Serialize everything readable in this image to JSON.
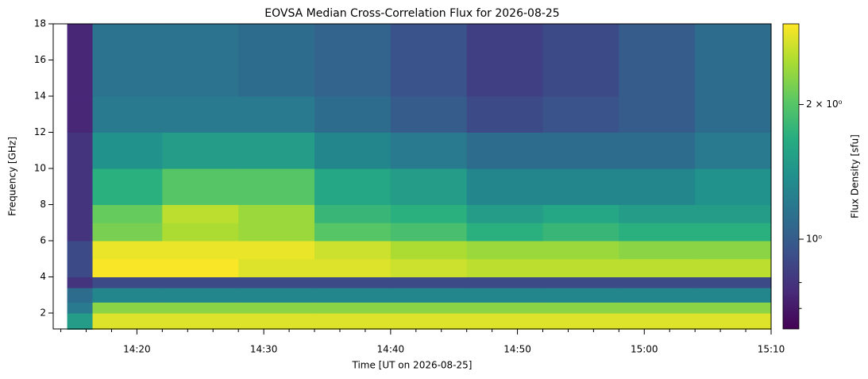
{
  "chart_data": {
    "type": "heatmap",
    "title": "EOVSA Median Cross-Correlation Flux for 2026-08-25",
    "xlabel": "Time [UT on 2026-08-25]",
    "ylabel": "Frequency [GHz]",
    "colorbar_label": "Flux Density [sfu]",
    "colormap": "viridis",
    "x_edges": [
      854.5,
      856.5,
      862,
      868,
      874,
      880,
      886,
      892,
      898,
      904,
      910
    ],
    "y_edges": [
      1.1,
      2,
      2.6,
      3.4,
      4,
      5,
      6,
      7,
      8,
      10,
      12,
      14,
      18
    ],
    "values": [
      [
        1.5,
        2.8,
        2.8,
        2.8,
        2.8,
        2.8,
        2.8,
        2.8,
        2.8,
        2.8
      ],
      [
        1.2,
        2.3,
        2.3,
        2.3,
        2.3,
        2.3,
        2.3,
        2.3,
        2.3,
        2.3
      ],
      [
        1.1,
        1.3,
        1.3,
        1.3,
        1.3,
        1.3,
        1.3,
        1.3,
        1.3,
        1.3
      ],
      [
        0.8,
        0.9,
        0.9,
        0.9,
        0.9,
        0.9,
        0.9,
        0.9,
        0.9,
        0.9
      ],
      [
        0.9,
        3.0,
        3.0,
        2.8,
        2.8,
        2.7,
        2.6,
        2.6,
        2.6,
        2.6
      ],
      [
        0.9,
        2.9,
        2.9,
        2.9,
        2.7,
        2.5,
        2.4,
        2.4,
        2.3,
        2.3
      ],
      [
        0.8,
        2.2,
        2.5,
        2.4,
        2.0,
        1.9,
        1.7,
        1.8,
        1.7,
        1.7
      ],
      [
        0.8,
        2.1,
        2.6,
        2.4,
        1.8,
        1.7,
        1.5,
        1.6,
        1.5,
        1.5
      ],
      [
        0.8,
        1.7,
        2.0,
        2.0,
        1.6,
        1.5,
        1.3,
        1.3,
        1.3,
        1.4
      ],
      [
        0.8,
        1.4,
        1.5,
        1.5,
        1.3,
        1.2,
        1.1,
        1.1,
        1.1,
        1.2
      ],
      [
        0.75,
        1.2,
        1.2,
        1.2,
        1.1,
        1.0,
        0.9,
        0.95,
        1.0,
        1.1
      ],
      [
        0.75,
        1.15,
        1.15,
        1.1,
        1.05,
        0.95,
        0.85,
        0.9,
        1.0,
        1.1
      ]
    ],
    "xlim": [
      853.4,
      910
    ],
    "xticks": [
      {
        "value": 860,
        "label": "14:20"
      },
      {
        "value": 870,
        "label": "14:30"
      },
      {
        "value": 880,
        "label": "14:40"
      },
      {
        "value": 890,
        "label": "14:50"
      },
      {
        "value": 900,
        "label": "15:00"
      },
      {
        "value": 910,
        "label": "15:10"
      }
    ],
    "xminorticks": [
      854,
      856,
      858,
      862,
      864,
      866,
      868,
      872,
      874,
      876,
      878,
      882,
      884,
      886,
      888,
      892,
      894,
      896,
      898,
      902,
      904,
      906,
      908
    ],
    "ylim": [
      1.12,
      18
    ],
    "yticks": [
      2,
      4,
      6,
      8,
      10,
      12,
      14,
      16,
      18
    ],
    "clim": [
      0.63,
      3.03
    ],
    "clog": true,
    "cticks": [
      {
        "value": 1,
        "label": "10⁰"
      },
      {
        "value": 2,
        "label": "2 × 10⁰"
      }
    ],
    "cminorticks": [
      0.7,
      0.8
    ]
  }
}
